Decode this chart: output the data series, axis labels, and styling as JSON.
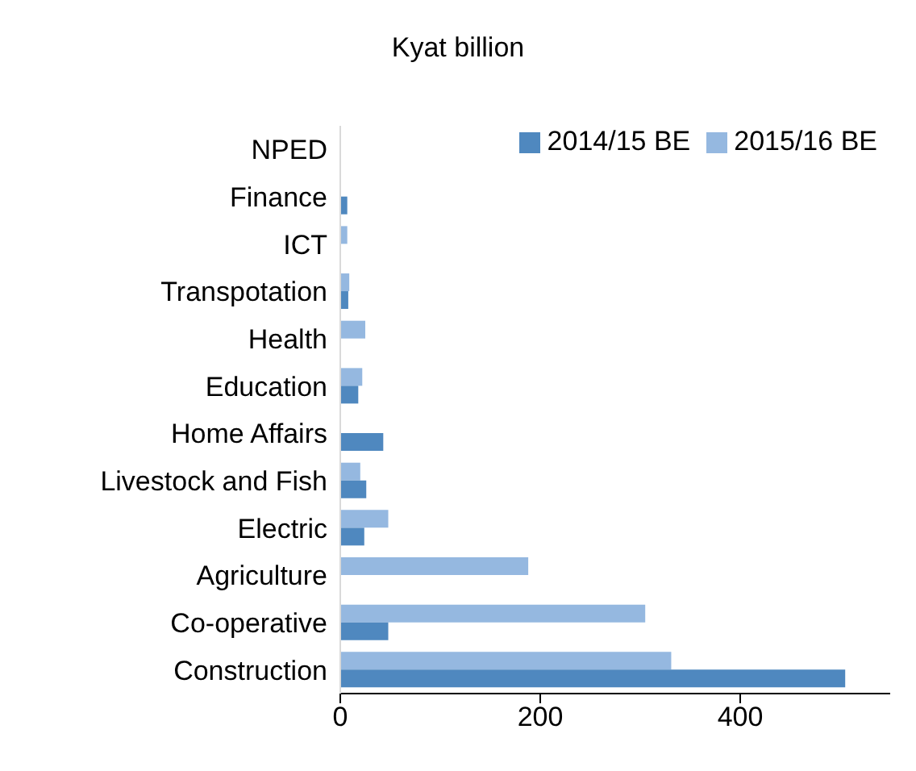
{
  "chart_data": {
    "type": "bar",
    "orientation": "horizontal",
    "title": "Kyat billion",
    "categories": [
      "NPED",
      "Finance",
      "ICT",
      "Transpotation",
      "Health",
      "Education",
      "Home Affairs",
      "Livestock and Fish",
      "Electric",
      "Agriculture",
      "Co-operative",
      "Construction"
    ],
    "series": [
      {
        "name": "2015/16 BE",
        "color": "#95b8e0",
        "values": [
          null,
          0,
          7,
          9,
          25,
          22,
          0,
          20,
          48,
          188,
          305,
          331
        ]
      },
      {
        "name": "2014/15 BE",
        "color": "#4f88bf",
        "values": [
          0,
          7,
          null,
          8,
          0,
          18,
          43,
          26,
          24,
          null,
          48,
          505
        ]
      }
    ],
    "xlim": [
      0,
      550
    ],
    "xticks": [
      0,
      200,
      400
    ],
    "legend": "top right",
    "grid": false
  }
}
